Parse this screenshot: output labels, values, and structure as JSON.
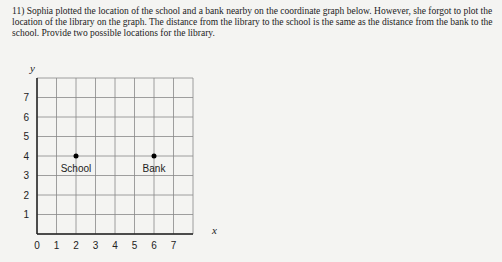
{
  "question": "11) Sophia plotted the location of the school and a bank nearby on the coordinate graph below. However, she forgot to plot the location of the library on the graph. The distance from the library to the school is the same as the distance from the bank to the school. Provide two possible locations for the library.",
  "chart_data": {
    "type": "scatter",
    "x_label": "x",
    "y_label": "y",
    "x": [
      2,
      6
    ],
    "values": [
      4,
      4
    ],
    "point_labels": [
      "School",
      "Bank"
    ],
    "color": "#000000",
    "xlim": [
      0,
      8
    ],
    "ylim": [
      0,
      8
    ],
    "xticks": [
      0,
      1,
      2,
      3,
      4,
      5,
      6,
      7
    ],
    "yticks": [
      1,
      2,
      3,
      4,
      5,
      6,
      7
    ],
    "grid": true
  }
}
